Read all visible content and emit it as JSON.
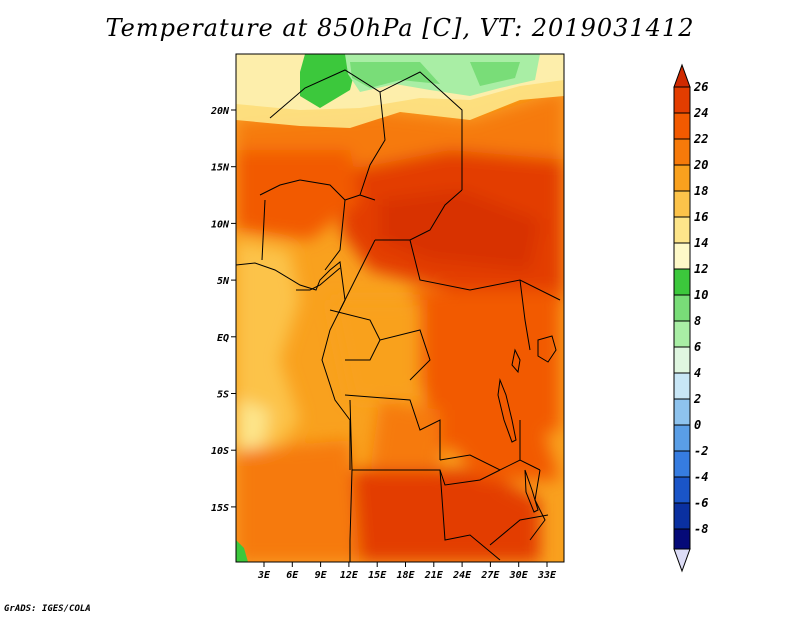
{
  "title": "Temperature at 850hPa [C], VT: 2019031412",
  "credit": "GrADS: IGES/COLA",
  "map": {
    "lat_labels": [
      "20N",
      "15N",
      "10N",
      "5N",
      "EQ",
      "5S",
      "10S",
      "15S"
    ],
    "lon_labels": [
      "3E",
      "6E",
      "9E",
      "12E",
      "15E",
      "18E",
      "21E",
      "24E",
      "27E",
      "30E",
      "33E"
    ]
  },
  "colorbar": {
    "labels": [
      "26",
      "24",
      "22",
      "20",
      "18",
      "16",
      "14",
      "12",
      "10",
      "8",
      "6",
      "4",
      "2",
      "0",
      "-2",
      "-4",
      "-6",
      "-8"
    ],
    "colors": [
      "#e33d00",
      "#f25a00",
      "#f67a0a",
      "#f9a11e",
      "#fcc34a",
      "#fde58a",
      "#fef9c8",
      "#3cc83c",
      "#79dd78",
      "#a9eea5",
      "#dff6e0",
      "#c8e6f6",
      "#8ec3ee",
      "#5a9ee6",
      "#367ce0",
      "#1a55c8",
      "#0a30a0",
      "#050a78"
    ],
    "top_arrow_color": "#d02a00",
    "bottom_arrow_color": "#dcdcf6"
  }
}
